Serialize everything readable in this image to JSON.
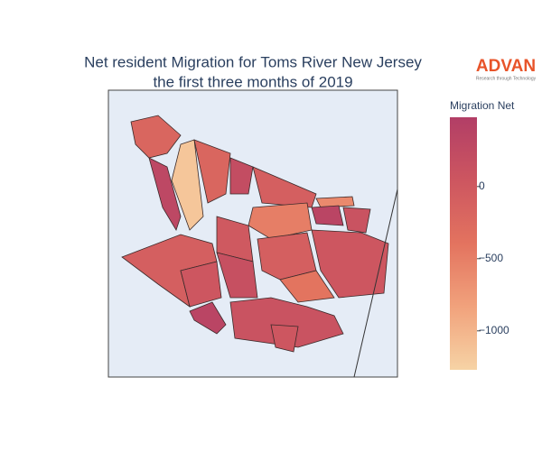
{
  "chart_data": {
    "type": "choropleth",
    "title": [
      "Net resident Migration for Toms River New Jersey",
      "the first three months of 2019"
    ],
    "logo": {
      "name": "ADVAN",
      "tagline": "Research through Technology"
    },
    "colorbar_title": "Migration Net",
    "values": [
      -200,
      -1150,
      300,
      -100,
      -200,
      200,
      -100,
      -500,
      -600,
      350,
      100,
      50,
      0,
      150,
      -100,
      -400,
      100,
      350,
      50,
      50
    ],
    "zlim": [
      -1270,
      480
    ],
    "zticks": [
      0,
      {
        "value": -500,
        "label": "−500"
      },
      {
        "value": -1000,
        "label": "−1000"
      }
    ],
    "colorscale": [
      "#f6d3a5",
      "#f1a27c",
      "#e3735f",
      "#cd5660",
      "#b23e66"
    ],
    "outline_color": "#3a2a2a"
  }
}
